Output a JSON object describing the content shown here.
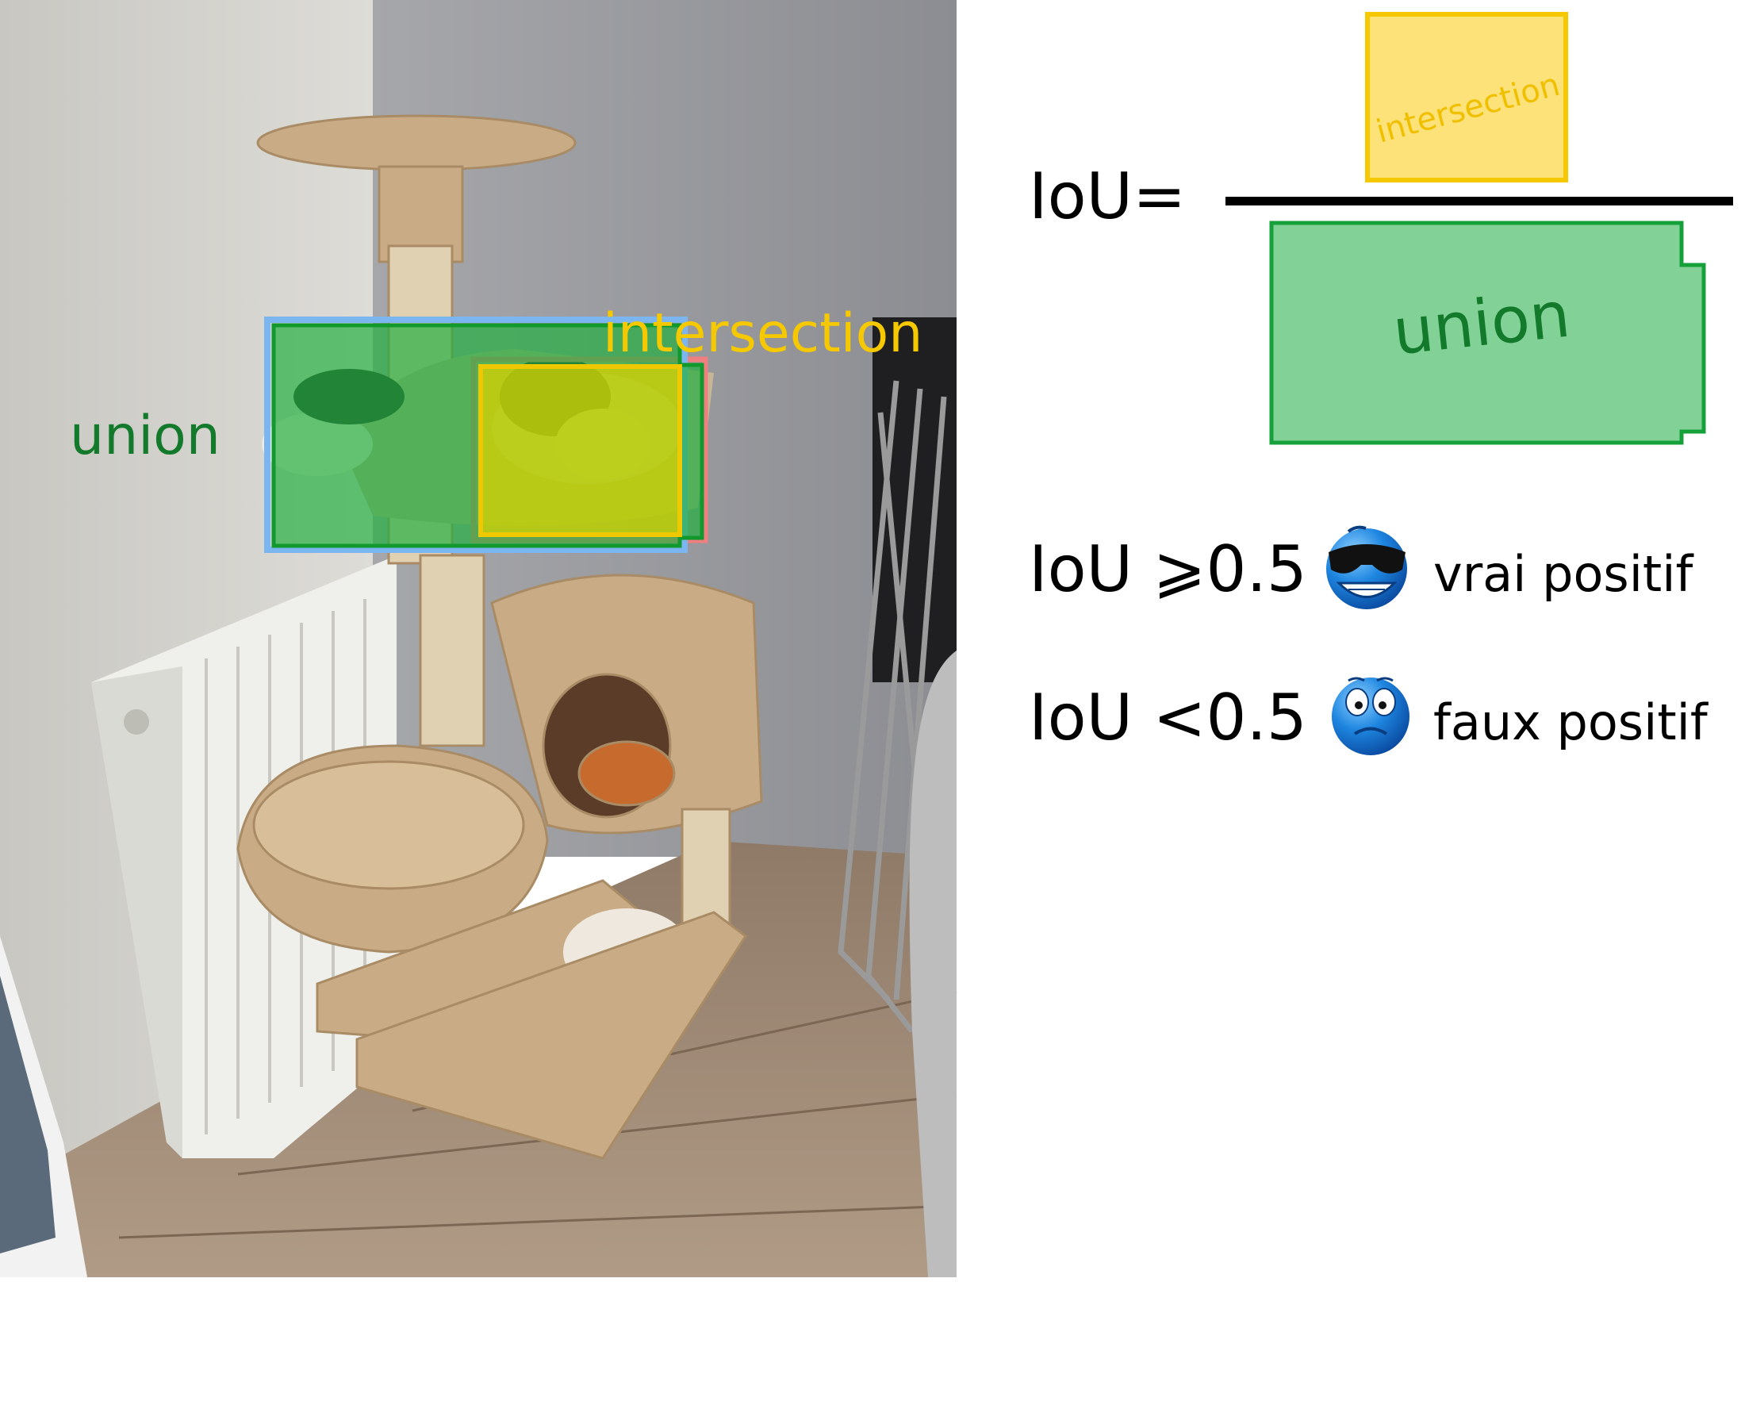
{
  "photo": {
    "label_union": "union",
    "label_intersection": "intersection"
  },
  "formula": {
    "lhs": "IoU=",
    "numerator_label": "intersection",
    "denominator_label": "union"
  },
  "rules": [
    {
      "condition": "IoU ⩾0.5",
      "icon": "cool-sunglasses-emoji-icon",
      "result": "vrai positif"
    },
    {
      "condition": "IoU <0.5",
      "icon": "worried-emoji-icon",
      "result": "faux positif"
    }
  ],
  "colors": {
    "union_green": "#1aa33a",
    "union_text": "#137a2c",
    "intersection_yellow": "#f5c800",
    "box_blue": "#7cb6f0",
    "box_red": "#f08080",
    "emoji_blue": "#1b79d6"
  }
}
